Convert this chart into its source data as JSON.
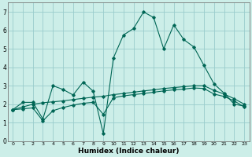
{
  "xlabel": "Humidex (Indice chaleur)",
  "bg_color": "#cceee8",
  "grid_color": "#99cccc",
  "line_color": "#006655",
  "xlim": [
    -0.5,
    23.5
  ],
  "ylim": [
    0,
    7.5
  ],
  "xticks": [
    0,
    1,
    2,
    3,
    4,
    5,
    6,
    7,
    8,
    9,
    10,
    11,
    12,
    13,
    14,
    15,
    16,
    17,
    18,
    19,
    20,
    21,
    22,
    23
  ],
  "yticks": [
    0,
    1,
    2,
    3,
    4,
    5,
    6,
    7
  ],
  "series1_x": [
    0,
    1,
    2,
    3,
    4,
    5,
    6,
    7,
    8,
    9,
    10,
    11,
    12,
    13,
    14,
    15,
    16,
    17,
    18,
    19,
    20,
    21,
    22,
    23
  ],
  "series1_y": [
    1.7,
    2.1,
    2.1,
    1.2,
    3.0,
    2.8,
    2.5,
    3.2,
    2.7,
    0.4,
    4.5,
    5.75,
    6.1,
    7.0,
    6.7,
    5.0,
    6.3,
    5.5,
    5.1,
    4.1,
    3.1,
    2.6,
    2.0,
    1.9
  ],
  "series2_x": [
    0,
    1,
    2,
    3,
    4,
    5,
    6,
    7,
    8,
    9,
    10,
    11,
    12,
    13,
    14,
    15,
    16,
    17,
    18,
    19,
    20,
    21,
    22,
    23
  ],
  "series2_y": [
    1.7,
    1.85,
    2.0,
    2.08,
    2.13,
    2.18,
    2.25,
    2.32,
    2.38,
    2.43,
    2.52,
    2.58,
    2.65,
    2.72,
    2.78,
    2.85,
    2.9,
    2.95,
    3.0,
    3.0,
    2.75,
    2.55,
    2.3,
    2.0
  ],
  "series3_x": [
    0,
    1,
    2,
    3,
    4,
    5,
    6,
    7,
    8,
    9,
    10,
    11,
    12,
    13,
    14,
    15,
    16,
    17,
    18,
    19,
    20,
    21,
    22,
    23
  ],
  "series3_y": [
    1.7,
    1.75,
    1.8,
    1.1,
    1.65,
    1.82,
    1.95,
    2.05,
    2.1,
    1.45,
    2.35,
    2.45,
    2.52,
    2.58,
    2.65,
    2.72,
    2.78,
    2.82,
    2.88,
    2.85,
    2.55,
    2.42,
    2.18,
    1.85
  ],
  "tick_fontsize": 5.5,
  "xlabel_fontsize": 6.5,
  "marker_size": 1.8,
  "line_width": 0.8
}
